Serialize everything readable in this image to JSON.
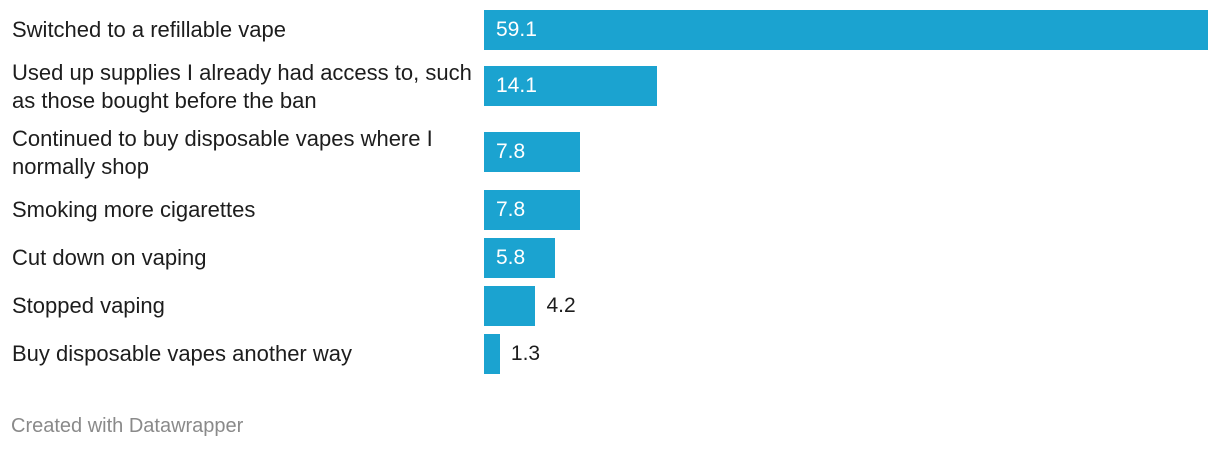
{
  "chart_data": {
    "type": "bar",
    "orientation": "horizontal",
    "categories": [
      "Switched to a refillable vape",
      "Used up supplies I already had access to, such as those bought before the ban",
      "Continued to buy disposable vapes where I normally shop",
      "Smoking more cigarettes",
      "Cut down on vaping",
      "Stopped vaping",
      "Buy disposable vapes another way"
    ],
    "values": [
      59.1,
      14.1,
      7.8,
      7.8,
      5.8,
      4.2,
      1.3
    ],
    "xlim": [
      0,
      59.1
    ],
    "bar_color": "#1ba3d0",
    "data_labels": true,
    "grid": false
  },
  "footer": {
    "credit": "Created with Datawrapper"
  }
}
